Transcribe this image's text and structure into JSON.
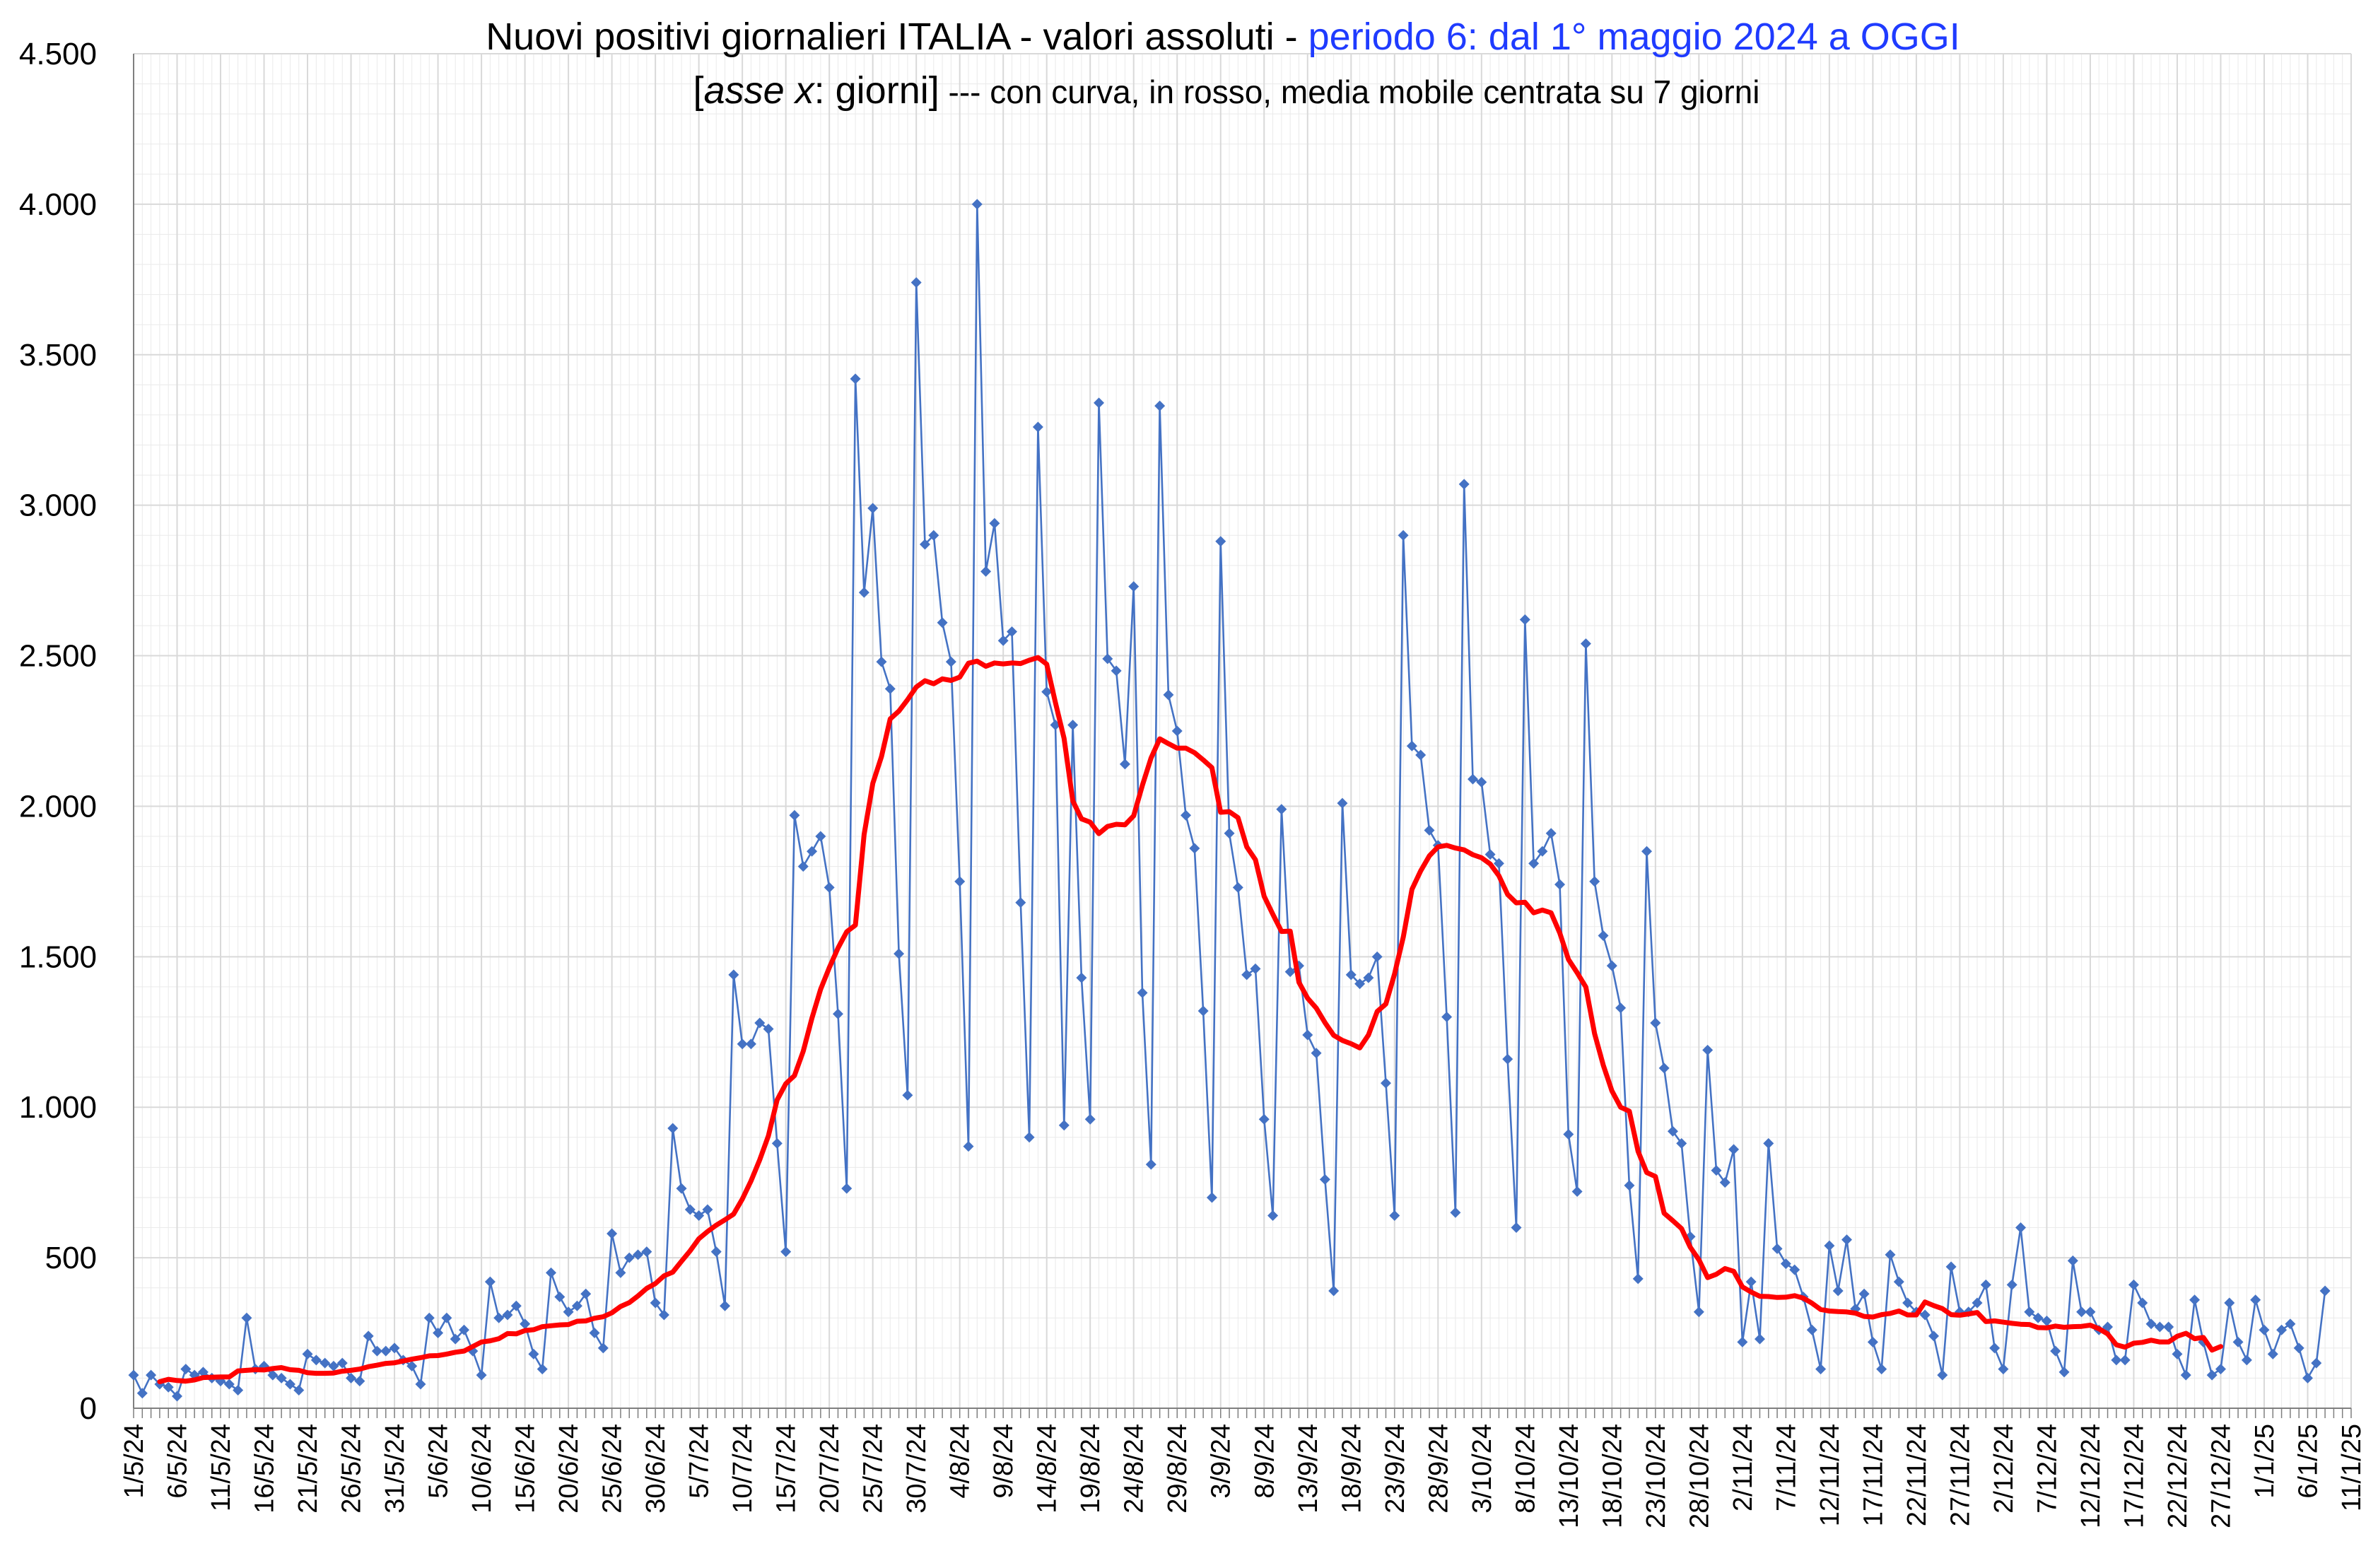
{
  "chart_data": {
    "type": "line",
    "title": {
      "main": "Nuovi positivi giornalieri ITALIA - valori assoluti - ",
      "period": "periodo 6: dal 1° maggio 2024 a OGGI",
      "sub_italic": "asse x",
      "sub_rest": ": giorni]",
      "sub_open": "[",
      "sub_tail": " --- con curva, in rosso, media mobile centrata su 7 giorni"
    },
    "colors": {
      "daily": "#4472C4",
      "moving_average": "#FF0000",
      "period_text": "#1F3BFF",
      "grid": "#D9D9D9",
      "axis": "#7F7F7F"
    },
    "ylim": [
      0,
      4500
    ],
    "yticks": [
      0,
      500,
      1000,
      1500,
      2000,
      2500,
      3000,
      3500,
      4000,
      4500
    ],
    "ytick_labels": [
      "0",
      "500",
      "1.000",
      "1.500",
      "2.000",
      "2.500",
      "3.000",
      "3.500",
      "4.000",
      "4.500"
    ],
    "x_range_days": [
      0,
      255
    ],
    "x_tick_labels": [
      "1/5/24",
      "6/5/24",
      "11/5/24",
      "16/5/24",
      "21/5/24",
      "26/5/24",
      "31/5/24",
      "5/6/24",
      "10/6/24",
      "15/6/24",
      "20/6/24",
      "25/6/24",
      "30/6/24",
      "5/7/24",
      "10/7/24",
      "15/7/24",
      "20/7/24",
      "25/7/24",
      "30/7/24",
      "4/8/24",
      "9/8/24",
      "14/8/24",
      "19/8/24",
      "24/8/24",
      "29/8/24",
      "3/9/24",
      "8/9/24",
      "13/9/24",
      "18/9/24",
      "23/9/24",
      "28/9/24",
      "3/10/24",
      "8/10/24",
      "13/10/24",
      "18/10/24",
      "23/10/24",
      "28/10/24",
      "2/11/24",
      "7/11/24",
      "12/11/24",
      "17/11/24",
      "22/11/24",
      "27/11/24",
      "2/12/24",
      "7/12/24",
      "12/12/24",
      "17/12/24",
      "22/12/24",
      "27/12/24",
      "1/1/25",
      "6/1/25",
      "11/1/25"
    ],
    "grid": true,
    "legend": "none",
    "series": [
      {
        "x_start": "1/5/24",
        "values": [
          110,
          50,
          110,
          80,
          70,
          40,
          130,
          110,
          120,
          100,
          90,
          80,
          60,
          300,
          130,
          140,
          110,
          100,
          80,
          60,
          180,
          160,
          150,
          140,
          150,
          100,
          90,
          240,
          190,
          190,
          200,
          160,
          140,
          80,
          300,
          250,
          300,
          230,
          260,
          190,
          110,
          420,
          300,
          310,
          340,
          280,
          180,
          130,
          450,
          370,
          320,
          340,
          380,
          250,
          200,
          580,
          450,
          500,
          510,
          520,
          350,
          310,
          930,
          730,
          660,
          640,
          660,
          520,
          340,
          1440,
          1210,
          1210,
          1280,
          1260,
          880,
          520,
          1970,
          1800,
          1850,
          1900,
          1730,
          1310,
          730,
          3420,
          2710,
          2990,
          2480,
          2390,
          1510,
          1040,
          3740,
          2870,
          2900,
          2610,
          2480,
          1750,
          870,
          4000,
          2780,
          2940,
          2550,
          2580,
          1680,
          900,
          3260,
          2380,
          2270,
          940,
          2270,
          1430,
          960,
          3340,
          2490,
          2450,
          2140,
          2730,
          1380,
          810,
          3330,
          2370,
          2250,
          1970,
          1860,
          1320,
          700,
          2880,
          1910,
          1730,
          1440,
          1460,
          960,
          640,
          1990,
          1450,
          1470,
          1240,
          1180,
          760,
          390,
          2010,
          1440,
          1410,
          1430,
          1500,
          1080,
          640,
          2900,
          2200,
          2170,
          1920,
          1870,
          1300,
          650,
          3070,
          2090,
          2080,
          1840,
          1810,
          1160,
          600,
          2620,
          1810,
          1850,
          1910,
          1740,
          910,
          720,
          2540,
          1750,
          1570,
          1470,
          1330,
          740,
          430,
          1850,
          1280,
          1130,
          920,
          880,
          570,
          320,
          1190,
          790,
          750,
          860,
          220,
          420,
          230,
          880,
          530,
          480,
          460,
          370,
          260,
          130,
          540,
          390,
          560,
          330,
          380,
          220,
          130,
          510,
          420,
          350,
          320,
          310,
          240,
          110,
          470,
          320,
          320,
          350,
          410,
          200,
          130,
          410,
          600,
          320,
          300,
          290,
          190,
          120,
          490,
          320,
          320,
          260,
          270,
          160,
          160,
          410,
          350,
          280,
          270,
          270,
          180,
          110,
          360,
          220,
          110,
          130,
          350,
          220,
          160,
          360,
          260,
          180,
          260,
          280,
          200,
          100,
          150,
          390
        ]
      },
      {
        "x_start": "4/5/24",
        "values": [
          88,
          96,
          92,
          90,
          94,
          102,
          103,
          104,
          104,
          124,
          126,
          128,
          127,
          132,
          135,
          128,
          126,
          118,
          116,
          116,
          117,
          123,
          126,
          130,
          138,
          143,
          149,
          151,
          157,
          163,
          168,
          174,
          175,
          180,
          186,
          190,
          205,
          220,
          224,
          231,
          248,
          247,
          258,
          261,
          271,
          274,
          277,
          278,
          289,
          290,
          299,
          304,
          317,
          338,
          351,
          373,
          398,
          414,
          440,
          452,
          488,
          523,
          563,
          587,
          608,
          626,
          645,
          695,
          755,
          825,
          905,
          1024,
          1078,
          1105,
          1186,
          1296,
          1392,
          1464,
          1529,
          1583,
          1605,
          1906,
          2076,
          2165,
          2290,
          2316,
          2354,
          2396,
          2417,
          2407,
          2423,
          2418,
          2429,
          2475,
          2482,
          2465,
          2476,
          2473,
          2476,
          2474,
          2485,
          2494,
          2472,
          2345,
          2225,
          2018,
          1958,
          1947,
          1909,
          1933,
          1940,
          1938,
          1968,
          2069,
          2160,
          2224,
          2208,
          2193,
          2193,
          2178,
          2154,
          2128,
          1980,
          1982,
          1962,
          1865,
          1822,
          1701,
          1641,
          1584,
          1585,
          1415,
          1362,
          1329,
          1281,
          1239,
          1222,
          1211,
          1197,
          1240,
          1318,
          1343,
          1443,
          1565,
          1724,
          1785,
          1835,
          1865,
          1870,
          1861,
          1855,
          1839,
          1829,
          1808,
          1769,
          1707,
          1679,
          1681,
          1646,
          1655,
          1646,
          1579,
          1491,
          1447,
          1399,
          1245,
          1140,
          1054,
          1000,
          987,
          854,
          783,
          770,
          648,
          623,
          597,
          535,
          493,
          434,
          445,
          464,
          455,
          403,
          386,
          372,
          371,
          368,
          369,
          374,
          366,
          349,
          328,
          323,
          321,
          320,
          316,
          305,
          303,
          311,
          315,
          323,
          310,
          310,
          353,
          341,
          331,
          311,
          309,
          313,
          318,
          288,
          290,
          286,
          282,
          279,
          278,
          268,
          267,
          273,
          269,
          271,
          272,
          276,
          264,
          247,
          211,
          203,
          216,
          219,
          226,
          220,
          220,
          239,
          249,
          231,
          235,
          193,
          205
        ]
      }
    ]
  }
}
